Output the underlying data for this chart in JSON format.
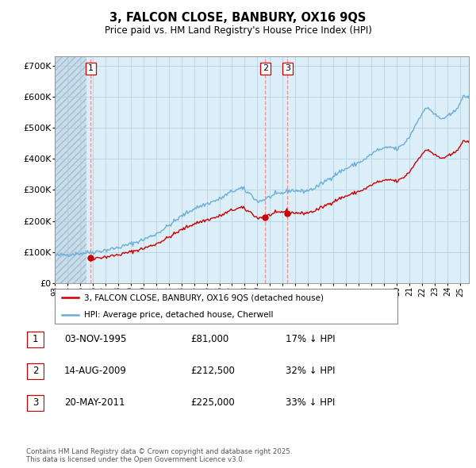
{
  "title": "3, FALCON CLOSE, BANBURY, OX16 9QS",
  "subtitle": "Price paid vs. HM Land Registry's House Price Index (HPI)",
  "ylim": [
    0,
    730000
  ],
  "yticks": [
    0,
    100000,
    200000,
    300000,
    400000,
    500000,
    600000,
    700000
  ],
  "ytick_labels": [
    "£0",
    "£100K",
    "£200K",
    "£300K",
    "£400K",
    "£500K",
    "£600K",
    "£700K"
  ],
  "bg_color": "#dceef8",
  "hatch_color": "#c8dcea",
  "grid_color": "#b0ccdd",
  "hpi_color": "#6baed6",
  "price_color": "#cc0000",
  "vline_color": "#ff8888",
  "hatch_end": 1995.5,
  "transactions": [
    {
      "date_num": 1995.84,
      "price": 81000,
      "label": "1"
    },
    {
      "date_num": 2009.62,
      "price": 212500,
      "label": "2"
    },
    {
      "date_num": 2011.38,
      "price": 225000,
      "label": "3"
    }
  ],
  "legend_property_label": "3, FALCON CLOSE, BANBURY, OX16 9QS (detached house)",
  "legend_hpi_label": "HPI: Average price, detached house, Cherwell",
  "table_rows": [
    {
      "num": "1",
      "date": "03-NOV-1995",
      "price": "£81,000",
      "hpi": "17% ↓ HPI"
    },
    {
      "num": "2",
      "date": "14-AUG-2009",
      "price": "£212,500",
      "hpi": "32% ↓ HPI"
    },
    {
      "num": "3",
      "date": "20-MAY-2011",
      "price": "£225,000",
      "hpi": "33% ↓ HPI"
    }
  ],
  "footer": "Contains HM Land Registry data © Crown copyright and database right 2025.\nThis data is licensed under the Open Government Licence v3.0.",
  "xlim_start": 1993.0,
  "xlim_end": 2025.7,
  "xtick_years": [
    1993,
    1994,
    1995,
    1996,
    1997,
    1998,
    1999,
    2000,
    2001,
    2002,
    2003,
    2004,
    2005,
    2006,
    2007,
    2008,
    2009,
    2010,
    2011,
    2012,
    2013,
    2014,
    2015,
    2016,
    2017,
    2018,
    2019,
    2020,
    2021,
    2022,
    2023,
    2024,
    2025
  ]
}
